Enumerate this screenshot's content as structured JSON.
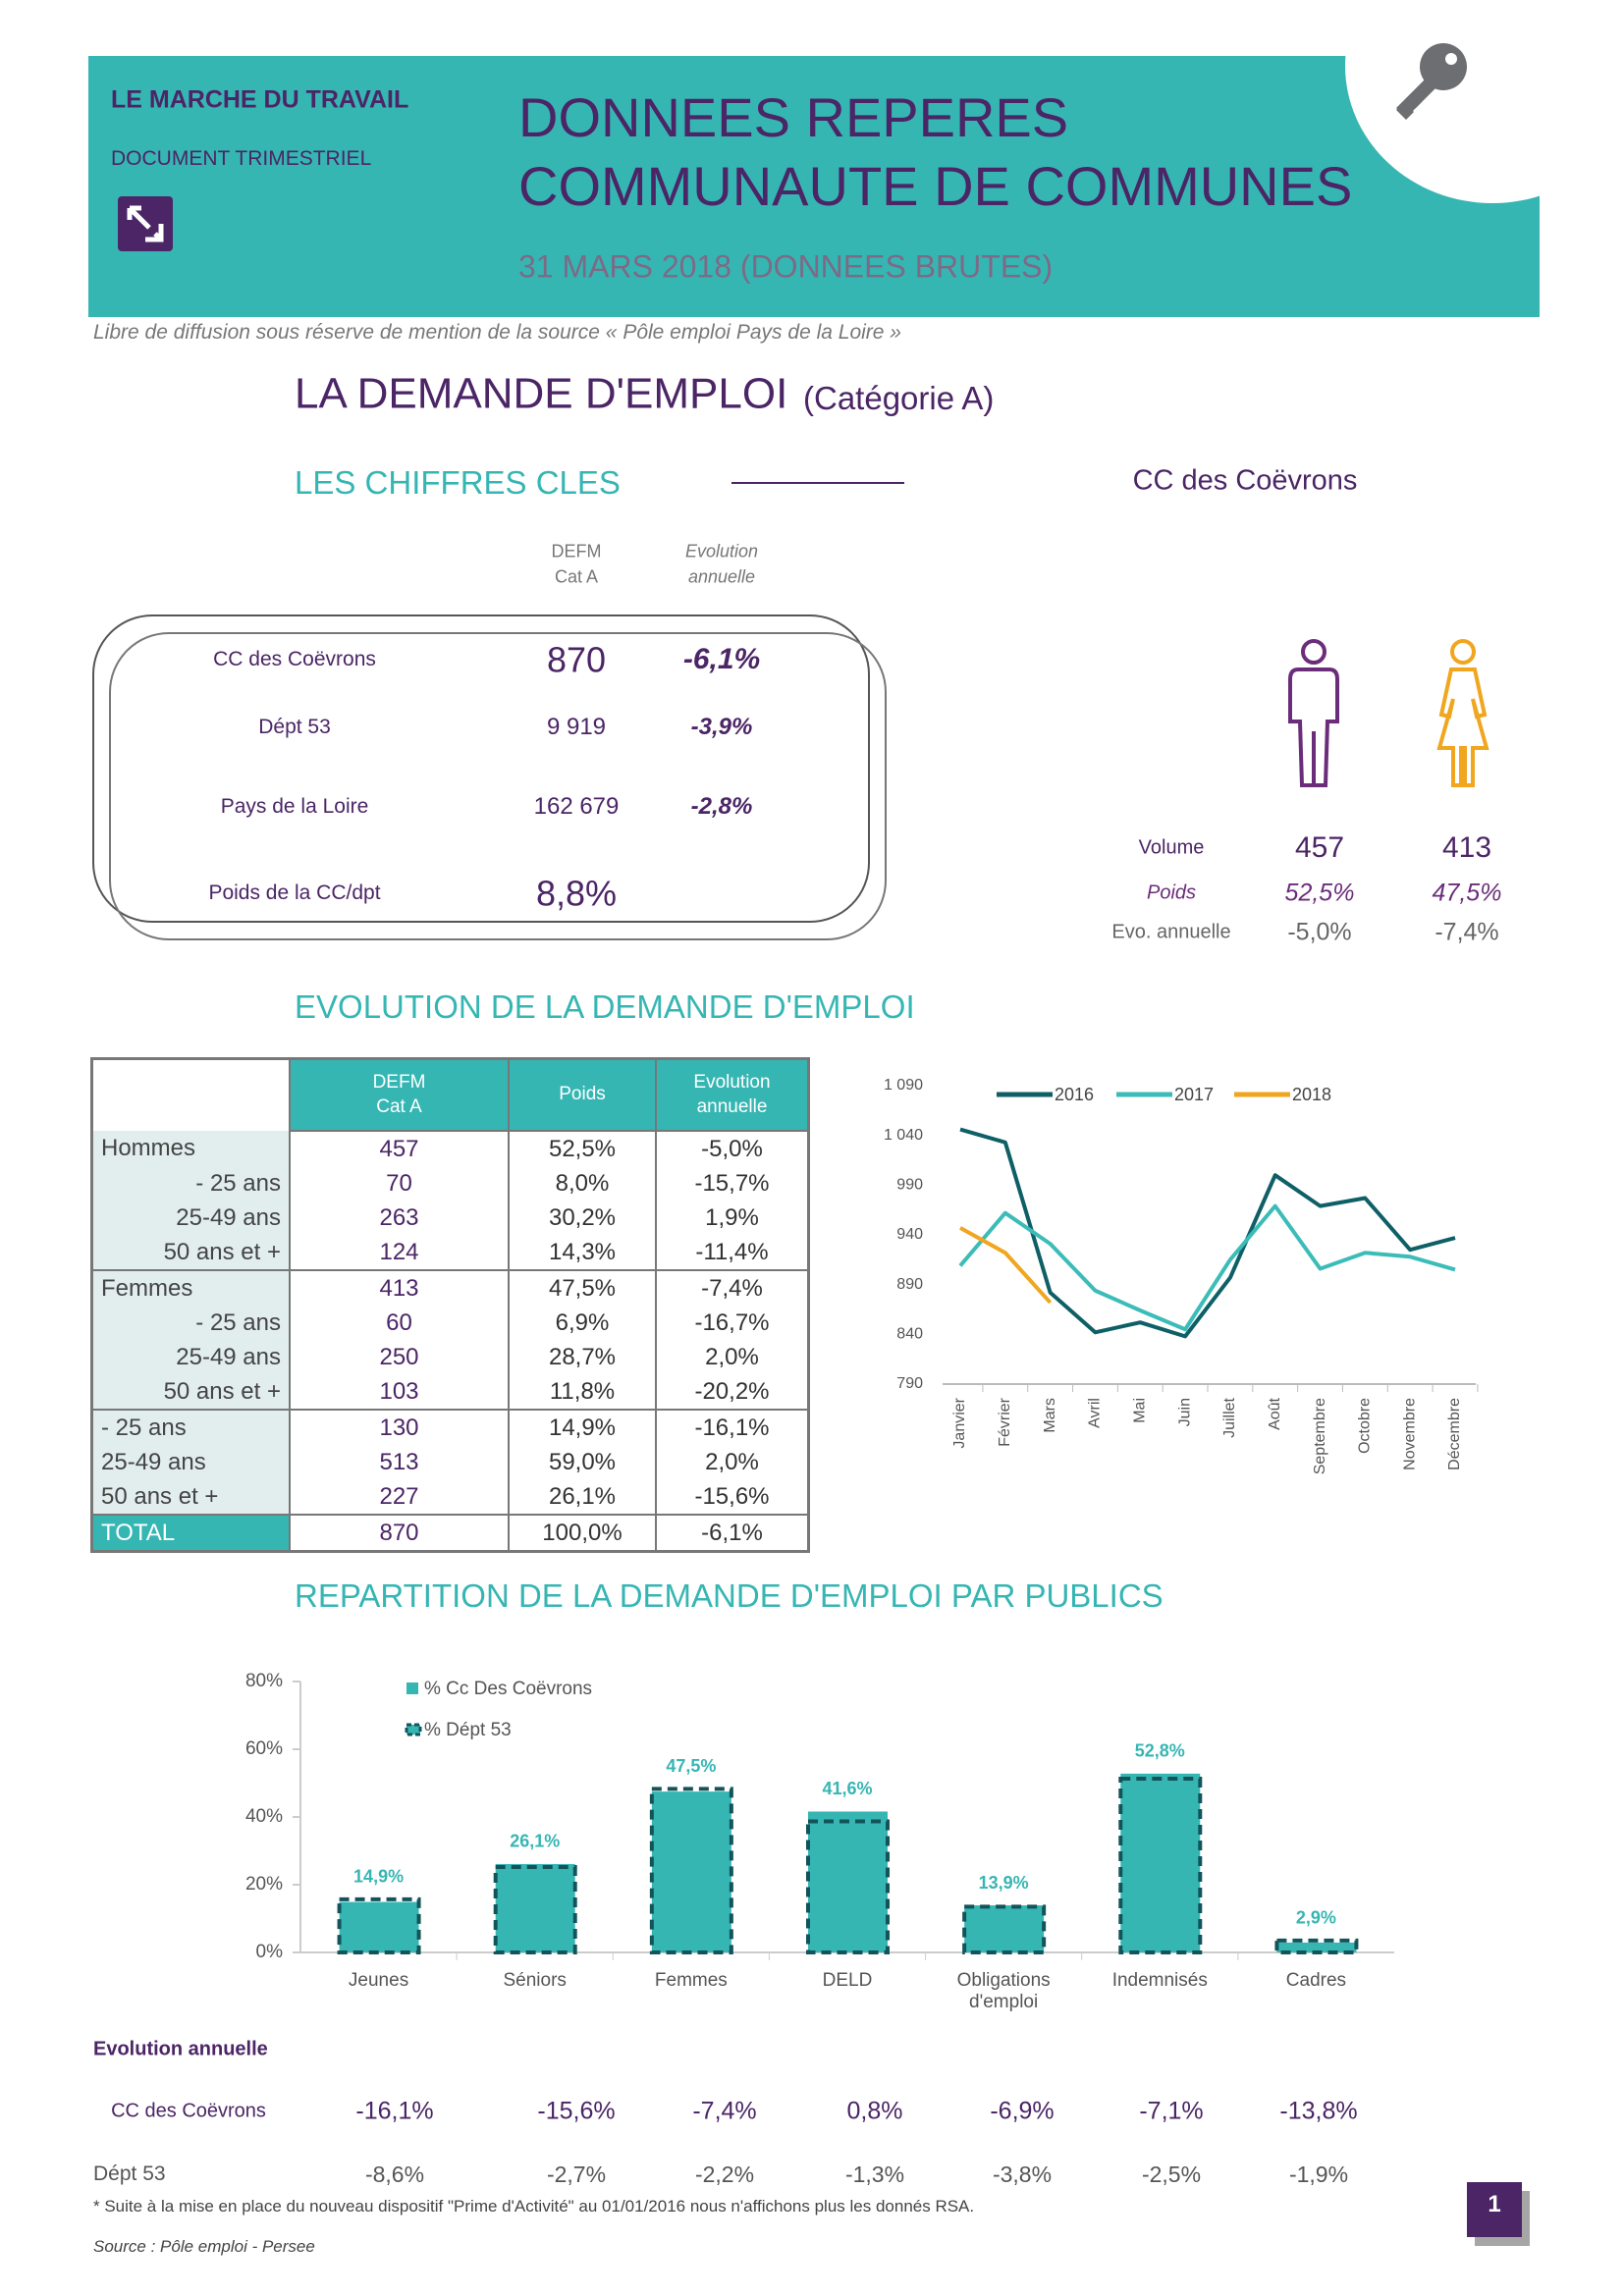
{
  "header": {
    "kicker": "LE MARCHE DU TRAVAIL",
    "doc_type": "DOCUMENT TRIMESTRIEL",
    "title_line1": "DONNEES REPERES",
    "title_line2": "COMMUNAUTE DE COMMUNES",
    "date": "31 MARS 2018 (DONNEES BRUTES)"
  },
  "notice": "Libre de diffusion sous réserve de mention de la source  « Pôle emploi Pays de la Loire »",
  "section_title": "LA DEMANDE D'EMPLOI",
  "section_subtitle": "(Catégorie A)",
  "key_figures": {
    "title": "LES CHIFFRES CLES",
    "col_defm": [
      "DEFM",
      "Cat A"
    ],
    "col_evolution": [
      "Evolution",
      "annuelle"
    ],
    "rows": [
      [
        "CC des Coëvrons",
        "870",
        "-6,1%"
      ],
      [
        "Dépt 53",
        "9 919",
        "-3,9%"
      ],
      [
        "Pays de la Loire",
        "162 679",
        "-2,8%"
      ],
      [
        "Poids de la CC/dpt",
        "8,8%"
      ]
    ]
  },
  "gender": {
    "area": "CC des Coëvrons",
    "labels": [
      "Volume",
      "Poids",
      "Evo. annuelle"
    ],
    "men": [
      "457",
      "52,5%",
      "-5,0%"
    ],
    "women": [
      "413",
      "47,5%",
      "-7,4%"
    ]
  },
  "evolution_title": "EVOLUTION DE LA DEMANDE D'EMPLOI",
  "evolution_table": {
    "columns": [
      [
        "DEFM",
        "Cat A"
      ],
      [
        "Poids"
      ],
      [
        "Evolution",
        "annuelle"
      ]
    ],
    "rows": [
      [
        "Hommes",
        "457",
        "52,5%",
        "-5,0%"
      ],
      [
        "- 25 ans",
        "70",
        "8,0%",
        "-15,7%"
      ],
      [
        "25-49 ans",
        "263",
        "30,2%",
        "1,9%"
      ],
      [
        "50 ans et +",
        "124",
        "14,3%",
        "-11,4%"
      ],
      [
        "Femmes",
        "413",
        "47,5%",
        "-7,4%"
      ],
      [
        "- 25 ans",
        "60",
        "6,9%",
        "-16,7%"
      ],
      [
        "25-49 ans",
        "250",
        "28,7%",
        "2,0%"
      ],
      [
        "50 ans et +",
        "103",
        "11,8%",
        "-20,2%"
      ],
      [
        "- 25 ans",
        "130",
        "14,9%",
        "-16,1%"
      ],
      [
        "25-49 ans",
        "513",
        "59,0%",
        "2,0%"
      ],
      [
        "50 ans et +",
        "227",
        "26,1%",
        "-15,6%"
      ],
      [
        "TOTAL",
        "870",
        "100,0%",
        "-6,1%"
      ]
    ]
  },
  "chart_data": [
    {
      "type": "line",
      "categories": [
        "Janvier",
        "Février",
        "Mars",
        "Avril",
        "Mai",
        "Juin",
        "Juillet",
        "Août",
        "Septembre",
        "Octobre",
        "Novembre",
        "Décembre"
      ],
      "series": [
        {
          "name": "2016",
          "color": "#0e5f66",
          "values": [
            1046,
            1033,
            882,
            842,
            852,
            838,
            897,
            1000,
            969,
            977,
            925,
            937
          ]
        },
        {
          "name": "2017",
          "color": "#3cbcb8",
          "values": [
            909,
            962,
            931,
            884,
            864,
            845,
            915,
            969,
            906,
            922,
            918,
            905
          ]
        },
        {
          "name": "2018",
          "color": "#f0a61e",
          "values": [
            947,
            922,
            872,
            null,
            null,
            null,
            null,
            null,
            null,
            null,
            null,
            null
          ]
        }
      ],
      "ylim": [
        790,
        1090
      ],
      "yticks": [
        790,
        840,
        890,
        940,
        990,
        {
          "value": 1040,
          "label": "1 040"
        },
        {
          "value": 1090,
          "label": "1 090"
        }
      ],
      "grid": false,
      "legend": "top"
    },
    {
      "type": "bar",
      "title": "REPARTITION DE LA DEMANDE D'EMPLOI PAR PUBLICS",
      "categories": [
        "Jeunes",
        "Séniors",
        "Femmes",
        "DELD",
        "Obligations d'emploi",
        "Indemnisés",
        "Cadres"
      ],
      "series": [
        {
          "name": "% Cc Des Coëvrons",
          "color": "#36b6b3",
          "values": [
            14.9,
            26.1,
            47.5,
            41.6,
            13.9,
            52.8,
            2.9
          ],
          "value_labels": [
            "14,9%",
            "26,1%",
            "47,5%",
            "41,6%",
            "13,9%",
            "52,8%",
            "2,9%"
          ]
        },
        {
          "name": "% Dépt 53",
          "color": "#13545a",
          "values": [
            15.7,
            25.2,
            48.3,
            38.7,
            13.5,
            51.3,
            3.5
          ]
        }
      ],
      "ylim": [
        0,
        80
      ],
      "yticks": [
        {
          "value": 0,
          "label": "0%"
        },
        {
          "value": 20,
          "label": "20%"
        },
        {
          "value": 40,
          "label": "40%"
        },
        {
          "value": 60,
          "label": "60%"
        },
        {
          "value": 80,
          "label": "80%"
        }
      ],
      "grid": false,
      "legend": "top-left"
    }
  ],
  "publics_evolution": {
    "title": "Evolution annuelle",
    "rows": [
      {
        "label": "CC des Coëvrons",
        "values": [
          "-16,1%",
          "-15,6%",
          "-7,4%",
          "0,8%",
          "-6,9%",
          "-7,1%",
          "-13,8%"
        ]
      },
      {
        "label": "Dépt 53",
        "values": [
          "-8,6%",
          "-2,7%",
          "-2,2%",
          "-1,3%",
          "-3,8%",
          "-2,5%",
          "-1,9%"
        ]
      }
    ]
  },
  "footnote": "* Suite à la mise en place du nouveau dispositif \"Prime d'Activité\" au 01/01/2016 nous n'affichons plus les donnés RSA.",
  "source": "Source : Pôle emploi - Persee",
  "page_number": "1"
}
